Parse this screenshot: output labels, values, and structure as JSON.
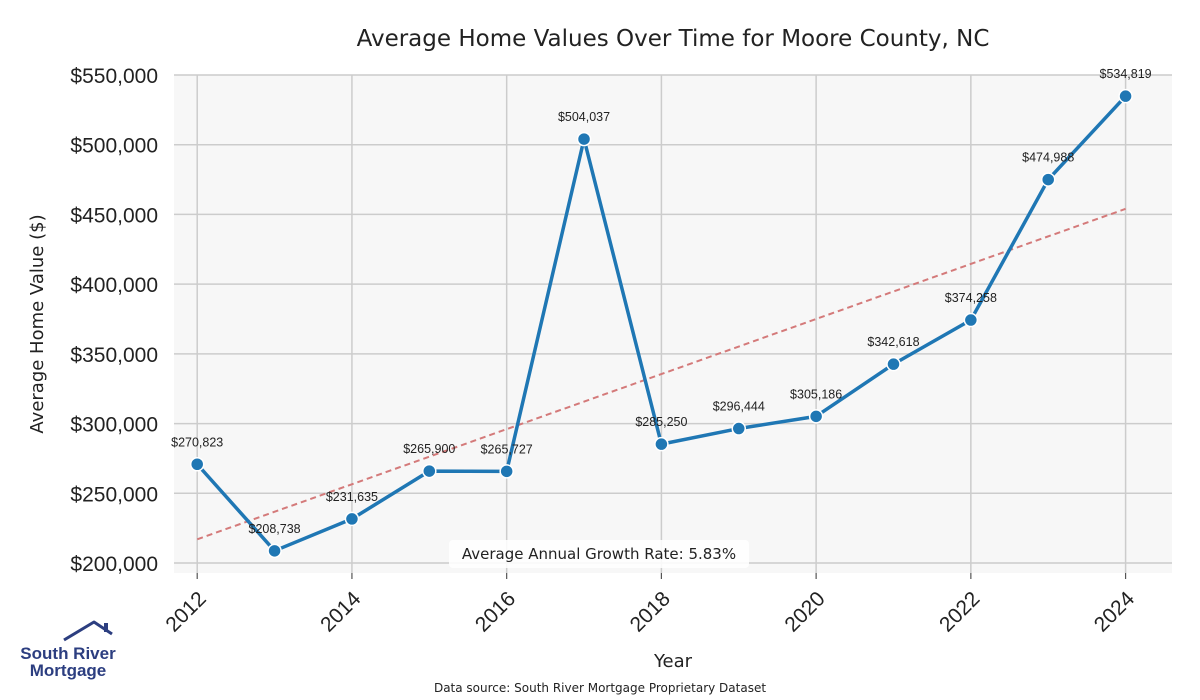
{
  "chart_data": {
    "type": "line",
    "title": "Average Home Values Over Time for Moore County, NC",
    "xlabel": "Year",
    "ylabel": "Average Home Value ($)",
    "x": [
      2012,
      2013,
      2014,
      2015,
      2016,
      2017,
      2018,
      2019,
      2020,
      2021,
      2022,
      2023,
      2024
    ],
    "values": [
      270823,
      208738,
      231635,
      265900,
      265727,
      504037,
      285250,
      296444,
      305186,
      342618,
      374258,
      474988,
      534819
    ],
    "data_labels": [
      "$270,823",
      "$208,738",
      "$231,635",
      "$265,900",
      "$265,727",
      "$504,037",
      "$285,250",
      "$296,444",
      "$305,186",
      "$342,618",
      "$374,258",
      "$474,988",
      "$534,819"
    ],
    "xticks": [
      "2012",
      "2014",
      "2016",
      "2018",
      "2020",
      "2022",
      "2024"
    ],
    "xtick_values": [
      2012,
      2014,
      2016,
      2018,
      2020,
      2022,
      2024
    ],
    "yticks": [
      "$200,000",
      "$250,000",
      "$300,000",
      "$350,000",
      "$400,000",
      "$450,000",
      "$500,000",
      "$550,000"
    ],
    "ytick_values": [
      200000,
      250000,
      300000,
      350000,
      400000,
      450000,
      500000,
      550000
    ],
    "xlim": [
      2011.7,
      2024.6
    ],
    "ylim": [
      200000,
      550000
    ],
    "trend_line": {
      "start": [
        2012,
        217000
      ],
      "end": [
        2024,
        454000
      ]
    },
    "annotation": "Average Annual Growth Rate: 5.83%",
    "grid": true,
    "colors": {
      "line": "#1f77b4",
      "trend": "#d47a7a",
      "plot_bg": "#f7f7f7",
      "grid": "#cccccc"
    }
  },
  "footer": {
    "source": "Data source: South River Mortgage Proprietary Dataset",
    "logo_line1": "South River",
    "logo_line2": "Mortgage"
  }
}
